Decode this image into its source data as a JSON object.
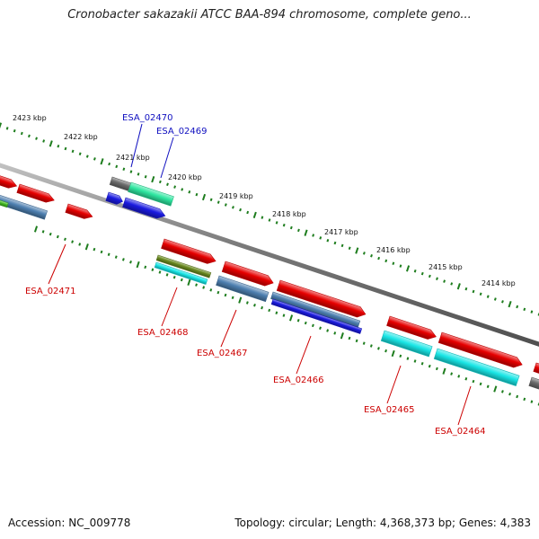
{
  "title": "Cronobacter sakazakii ATCC BAA-894 chromosome, complete geno...",
  "footer": {
    "accession": "Accession: NC_009778",
    "summary": "Topology: circular; Length: 4,368,373 bp; Genes: 4,383"
  },
  "colors": {
    "backbone": "#7a7a7a",
    "tick": "#1e7d1e",
    "label_forward": "#1010c0",
    "label_reverse": "#cc0000",
    "red": "#e60000",
    "steelblue": "#4d7fb0",
    "blue": "#1a1ae0",
    "cyan": "#19e6e6",
    "teal": "#2ee6a0",
    "olive": "#6a8a20",
    "gray": "#6b6b6b",
    "green": "#44bb22"
  },
  "scale_labels": [
    "2423 kbp",
    "2422 kbp",
    "2421 kbp",
    "2420 kbp",
    "2419 kbp",
    "2418 kbp",
    "2417 kbp",
    "2416 kbp",
    "2415 kbp",
    "2414 kbp"
  ],
  "gene_labels": [
    {
      "name": "ESA_02470",
      "strand": "forward"
    },
    {
      "name": "ESA_02469",
      "strand": "forward"
    },
    {
      "name": "ESA_02471",
      "strand": "reverse"
    },
    {
      "name": "ESA_02468",
      "strand": "reverse"
    },
    {
      "name": "ESA_02467",
      "strand": "reverse"
    },
    {
      "name": "ESA_02466",
      "strand": "reverse"
    },
    {
      "name": "ESA_02465",
      "strand": "reverse"
    },
    {
      "name": "ESA_02464",
      "strand": "reverse"
    }
  ]
}
